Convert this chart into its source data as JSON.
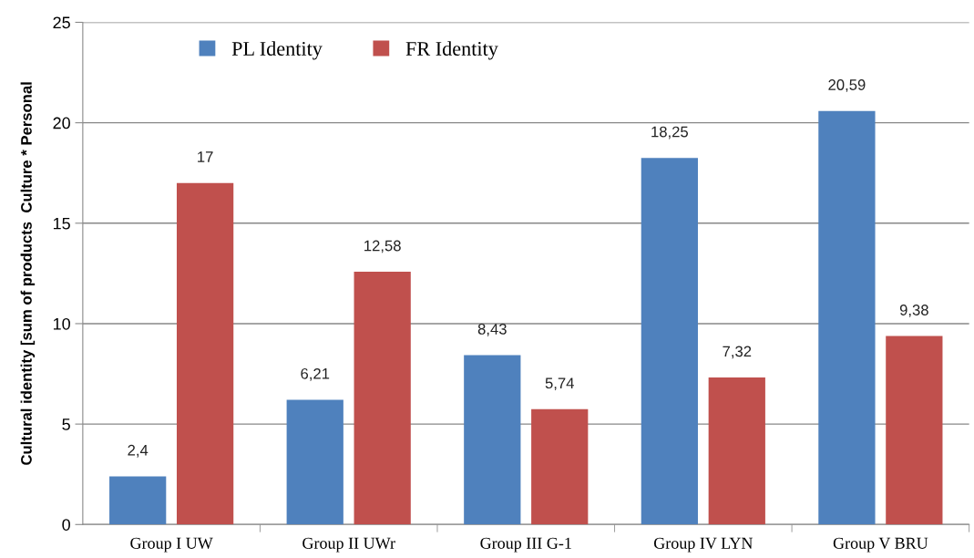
{
  "chart_data": {
    "type": "bar",
    "ylabel": "Cultural identity [sum of products  Culture * Personal",
    "categories": [
      "Group I UW",
      "Group II UWr",
      "Group III G-1",
      "Group IV LYN",
      "Group V BRU"
    ],
    "series": [
      {
        "name": "PL Identity",
        "color": "#4f81bd",
        "values": [
          2.4,
          6.21,
          8.43,
          18.25,
          20.59
        ],
        "value_labels": [
          "2,4",
          "6,21",
          "8,43",
          "18,25",
          "20,59"
        ]
      },
      {
        "name": "FR Identity",
        "color": "#c0504d",
        "values": [
          17,
          12.58,
          5.74,
          7.32,
          9.38
        ],
        "value_labels": [
          "17",
          "12,58",
          "5,74",
          "7,32",
          "9,38"
        ]
      }
    ],
    "ylim": [
      0,
      25
    ],
    "yticks": [
      0,
      5,
      10,
      15,
      20,
      25
    ],
    "grid": "y",
    "legend": "top"
  }
}
